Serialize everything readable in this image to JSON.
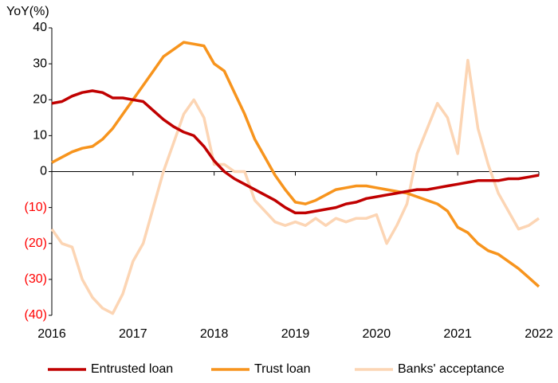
{
  "chart_data": {
    "type": "line",
    "y_axis_label": "YoY(%)",
    "x": [
      2016,
      2016.125,
      2016.25,
      2016.375,
      2016.5,
      2016.625,
      2016.75,
      2016.875,
      2017,
      2017.125,
      2017.25,
      2017.375,
      2017.5,
      2017.625,
      2017.75,
      2017.875,
      2018,
      2018.125,
      2018.25,
      2018.375,
      2018.5,
      2018.625,
      2018.75,
      2018.875,
      2019,
      2019.125,
      2019.25,
      2019.375,
      2019.5,
      2019.625,
      2019.75,
      2019.875,
      2020,
      2020.125,
      2020.25,
      2020.375,
      2020.5,
      2020.625,
      2020.75,
      2020.875,
      2021,
      2021.125,
      2021.25,
      2021.375,
      2021.5,
      2021.625,
      2021.75,
      2021.875,
      2022
    ],
    "series": [
      {
        "name": "Entrusted loan",
        "color": "#c00000",
        "values": [
          19,
          19.5,
          21,
          22,
          22.5,
          22,
          20.5,
          20.5,
          20,
          19.5,
          17,
          14.5,
          12.5,
          11,
          10,
          7,
          3,
          0,
          -2,
          -3.5,
          -5,
          -6.5,
          -8,
          -10,
          -11.5,
          -11.5,
          -11,
          -10.5,
          -10,
          -9,
          -8.5,
          -7.5,
          -7,
          -6.5,
          -6,
          -5.5,
          -5,
          -5,
          -4.5,
          -4,
          -3.5,
          -3,
          -2.5,
          -2.5,
          -2.5,
          -2,
          -2,
          -1.5,
          -1
        ]
      },
      {
        "name": "Trust loan",
        "color": "#f7941d",
        "values": [
          2.5,
          4,
          5.5,
          6.5,
          7,
          9,
          12,
          16,
          20,
          24,
          28,
          32,
          34,
          36,
          35.5,
          35,
          30,
          28,
          22,
          16,
          9,
          4,
          -1,
          -5,
          -8.5,
          -9,
          -8,
          -6.5,
          -5,
          -4.5,
          -4,
          -4,
          -4.5,
          -5,
          -5.5,
          -6,
          -7,
          -8,
          -9,
          -11,
          -15.5,
          -17,
          -20,
          -22,
          -23,
          -25,
          -27,
          -29.5,
          -32
        ]
      },
      {
        "name": "Banks' acceptance",
        "color": "#fcd5b4",
        "values": [
          -16,
          -20,
          -21,
          -30,
          -35,
          -38,
          -39.5,
          -34,
          -25,
          -20,
          -10,
          0,
          8,
          16,
          20,
          15,
          2,
          2,
          0,
          0,
          -8,
          -11,
          -14,
          -15,
          -14,
          -15,
          -13,
          -15,
          -13,
          -14,
          -13,
          -13,
          -12,
          -20,
          -15,
          -9,
          5,
          12,
          19,
          15,
          5,
          31,
          12,
          2,
          -6,
          -11,
          -16,
          -15,
          -13
        ]
      }
    ],
    "xlim": [
      2016,
      2022
    ],
    "xticks": [
      2016,
      2017,
      2018,
      2019,
      2020,
      2021,
      2022
    ],
    "ylim": [
      -40,
      40
    ],
    "yticks": [
      {
        "value": -40,
        "label": "(40)"
      },
      {
        "value": -30,
        "label": "(30)"
      },
      {
        "value": -20,
        "label": "(20)"
      },
      {
        "value": -10,
        "label": "(10)"
      },
      0,
      10,
      20,
      30,
      40
    ],
    "negative_label_color": "#ff0000",
    "legend": "bottom"
  }
}
